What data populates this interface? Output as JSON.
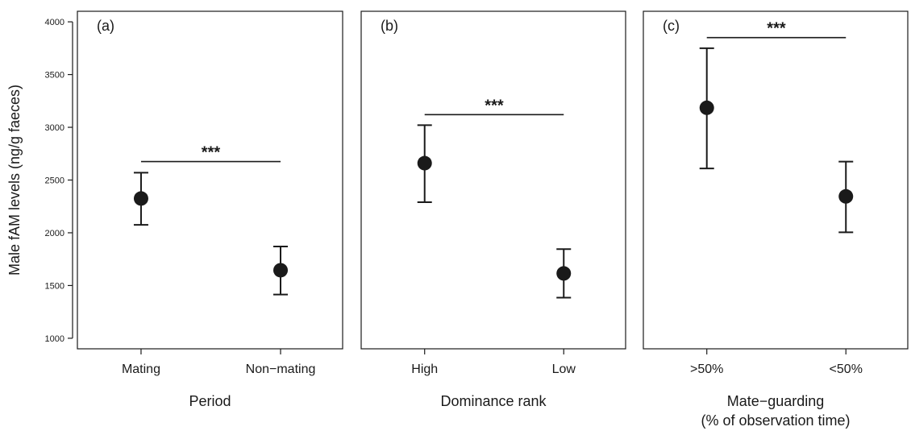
{
  "chart_data": {
    "type": "scatter",
    "ylabel": "Male fAM levels (ng/g faeces)",
    "ylim": [
      900,
      4100
    ],
    "yticks": [
      1000,
      1500,
      2000,
      2500,
      3000,
      3500,
      4000
    ],
    "yticklabels": [
      "1000",
      "1500",
      "2000",
      "2500",
      "3000",
      "3500",
      "4000"
    ],
    "panels": [
      {
        "label": "(a)",
        "xlabel": [
          "Period"
        ],
        "categories": [
          "Mating",
          "Non−mating"
        ],
        "means": [
          2325,
          1645
        ],
        "lower": [
          2075,
          1415
        ],
        "upper": [
          2570,
          1870
        ],
        "significance": "***",
        "bracket_y": 2675
      },
      {
        "label": "(b)",
        "xlabel": [
          "Dominance rank"
        ],
        "categories": [
          "High",
          "Low"
        ],
        "means": [
          2660,
          1615
        ],
        "lower": [
          2290,
          1385
        ],
        "upper": [
          3020,
          1845
        ],
        "significance": "***",
        "bracket_y": 3120
      },
      {
        "label": "(c)",
        "xlabel": [
          "Mate−guarding",
          "(% of observation time)"
        ],
        "categories": [
          ">50%",
          "<50%"
        ],
        "means": [
          3185,
          2345
        ],
        "lower": [
          2610,
          2005
        ],
        "upper": [
          3750,
          2675
        ],
        "significance": "***",
        "bracket_y": 3850
      }
    ]
  }
}
